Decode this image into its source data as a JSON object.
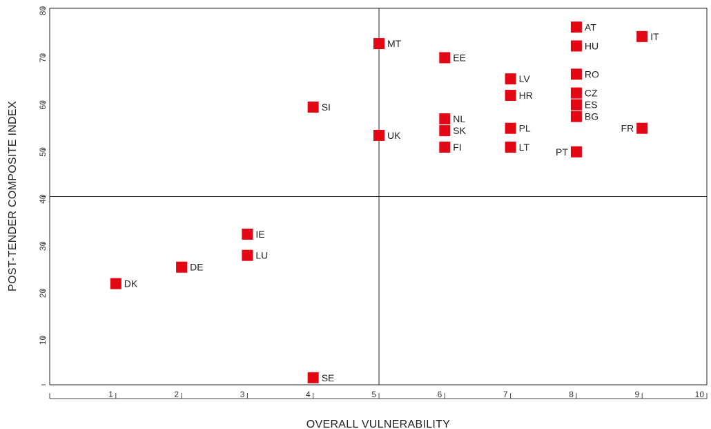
{
  "chart_data": {
    "type": "scatter",
    "title": "",
    "xlabel": "OVERALL VULNERABILITY",
    "ylabel": "POST-TENDER COMPOSITE INDEX",
    "xlim": [
      0,
      10
    ],
    "ylim": [
      0,
      80
    ],
    "xticks": [
      "1",
      "2",
      "3",
      "4",
      "5",
      "6",
      "7",
      "8",
      "9",
      "10"
    ],
    "yticks": [
      "10",
      "20",
      "30",
      "40",
      "50",
      "60",
      "70",
      "80"
    ],
    "quadrant_lines": {
      "x": 5,
      "y": 40
    },
    "marker_color": "#e30613",
    "points": [
      {
        "label": "AT",
        "x": 8,
        "y": 76,
        "label_side": "right"
      },
      {
        "label": "IT",
        "x": 9,
        "y": 74,
        "label_side": "right"
      },
      {
        "label": "HU",
        "x": 8,
        "y": 72,
        "label_side": "right"
      },
      {
        "label": "MT",
        "x": 5,
        "y": 72.5,
        "label_side": "right"
      },
      {
        "label": "EE",
        "x": 6,
        "y": 69.5,
        "label_side": "right"
      },
      {
        "label": "RO",
        "x": 8,
        "y": 66,
        "label_side": "right"
      },
      {
        "label": "LV",
        "x": 7,
        "y": 65,
        "label_side": "right"
      },
      {
        "label": "CZ",
        "x": 8,
        "y": 62,
        "label_side": "right"
      },
      {
        "label": "HR",
        "x": 7,
        "y": 61.5,
        "label_side": "right"
      },
      {
        "label": "ES",
        "x": 8,
        "y": 59.5,
        "label_side": "right"
      },
      {
        "label": "SI",
        "x": 4,
        "y": 59,
        "label_side": "right"
      },
      {
        "label": "BG",
        "x": 8,
        "y": 57,
        "label_side": "right"
      },
      {
        "label": "NL",
        "x": 6,
        "y": 56.5,
        "label_side": "right"
      },
      {
        "label": "PL",
        "x": 7,
        "y": 54.5,
        "label_side": "right"
      },
      {
        "label": "FR",
        "x": 9,
        "y": 54.5,
        "label_side": "left"
      },
      {
        "label": "SK",
        "x": 6,
        "y": 54,
        "label_side": "right"
      },
      {
        "label": "UK",
        "x": 5,
        "y": 53,
        "label_side": "right"
      },
      {
        "label": "FI",
        "x": 6,
        "y": 50.5,
        "label_side": "right"
      },
      {
        "label": "LT",
        "x": 7,
        "y": 50.5,
        "label_side": "right"
      },
      {
        "label": "PT",
        "x": 8,
        "y": 49.5,
        "label_side": "left"
      },
      {
        "label": "IE",
        "x": 3,
        "y": 32,
        "label_side": "right"
      },
      {
        "label": "LU",
        "x": 3,
        "y": 27.5,
        "label_side": "right"
      },
      {
        "label": "DE",
        "x": 2,
        "y": 25,
        "label_side": "right"
      },
      {
        "label": "DK",
        "x": 1,
        "y": 21.5,
        "label_side": "right"
      },
      {
        "label": "SE",
        "x": 4,
        "y": 1.5,
        "label_side": "right"
      }
    ]
  }
}
